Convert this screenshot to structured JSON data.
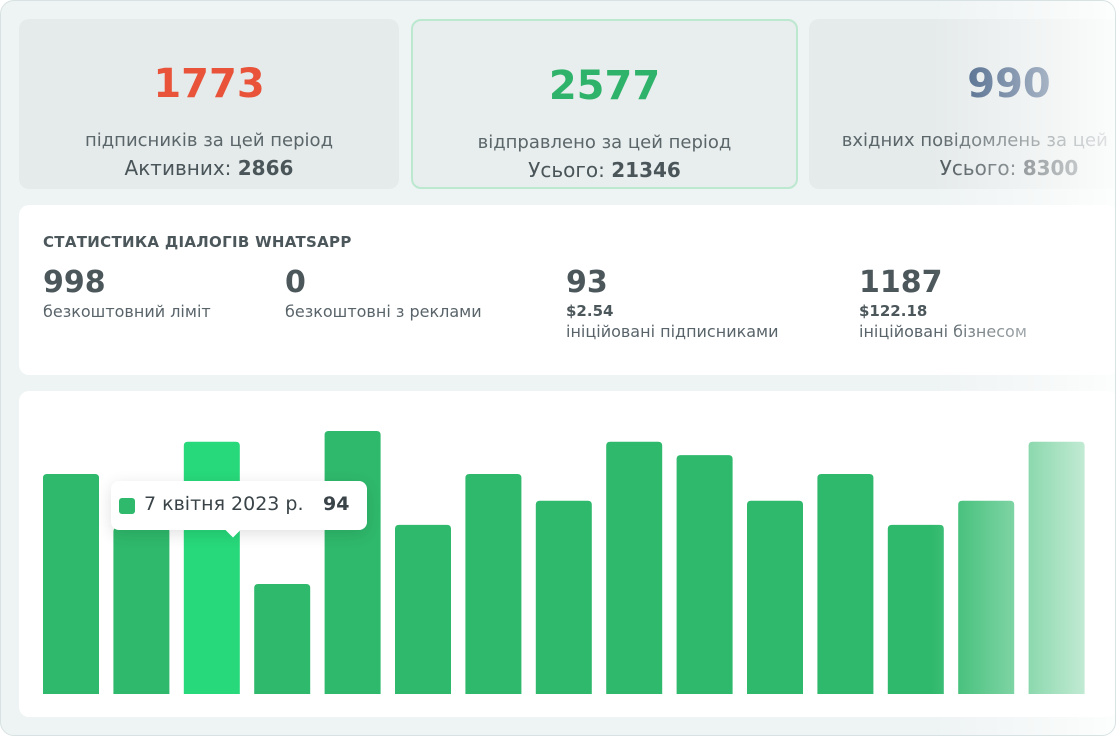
{
  "cards": [
    {
      "value": 1773,
      "caption": "підписників за цей період",
      "total_label": "Активних:",
      "total": 2866
    },
    {
      "value": 2577,
      "caption": "відправлено за цей період",
      "total_label": "Усього:",
      "total": 21346
    },
    {
      "value": 990,
      "caption": "вхідних повідомлень за цей період",
      "total_label": "Усього:",
      "total": 8300
    }
  ],
  "whatsapp": {
    "title": "СТАТИСТИКА ДІАЛОГІВ WHATSAPP",
    "items": [
      {
        "value": 998,
        "label": "безкоштовний ліміт"
      },
      {
        "value": 0,
        "label": "безкоштовні з реклами"
      },
      {
        "value": 93,
        "price": "$2.54",
        "label": "ініційовані підписниками"
      },
      {
        "value": 1187,
        "price": "$122.18",
        "label": "ініційовані бізнесом"
      }
    ]
  },
  "chart_data": {
    "type": "bar",
    "categories": [
      null,
      null,
      "7 квітня 2023 р.",
      null,
      null,
      null,
      null,
      null,
      null,
      null,
      null,
      null,
      null,
      null,
      null
    ],
    "values": [
      82,
      62,
      94,
      41,
      98,
      63,
      82,
      72,
      94,
      89,
      72,
      82,
      63,
      72,
      94
    ],
    "color": "#2fb96c",
    "highlight_color": "#27d97a",
    "highlight_index": 2
  }
}
